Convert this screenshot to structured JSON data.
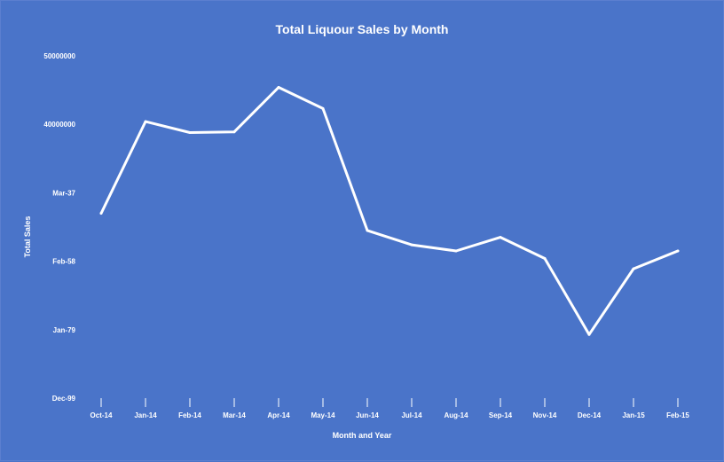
{
  "colors": {
    "background": "#4a74c9",
    "line": "#ffffff",
    "text": "#ffffff"
  },
  "chart_data": {
    "type": "line",
    "title": "Total Liquour Sales by Month",
    "xlabel": "Month and Year",
    "ylabel": "Total Sales",
    "categories": [
      "Oct-14",
      "Jan-14",
      "Feb-14",
      "Mar-14",
      "Apr-14",
      "May-14",
      "Jun-14",
      "Jul-14",
      "Aug-14",
      "Sep-14",
      "Nov-14",
      "Dec-14",
      "Jan-15",
      "Feb-15"
    ],
    "y_tick_labels": [
      "Dec-99",
      "Jan-79",
      "Feb-58",
      "Mar-37",
      "40000000",
      "50000000"
    ],
    "ylim": [
      0,
      50000000
    ],
    "grid": false,
    "legend": "none",
    "series": [
      {
        "values": [
          27000000,
          40400000,
          38800000,
          38900000,
          45400000,
          42300000,
          24500000,
          22400000,
          21500000,
          23500000,
          20400000,
          9300000,
          18900000,
          21500000
        ]
      }
    ]
  }
}
